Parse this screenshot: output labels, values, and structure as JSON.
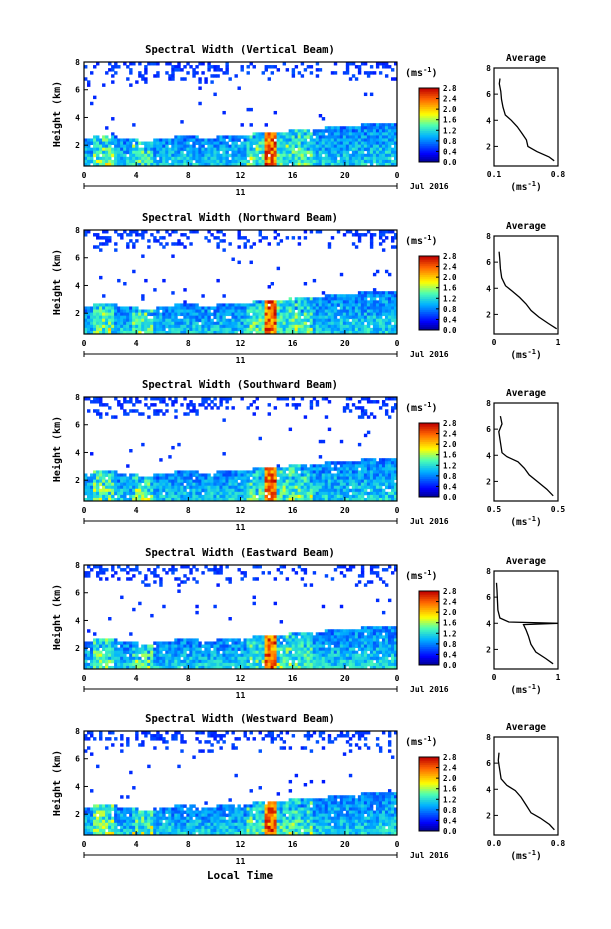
{
  "figure": {
    "xlabel": "Local Time",
    "date_label": "Jul 2016",
    "day_label": "11",
    "unit_label": "(ms",
    "unit_exp": "-1",
    "ylabel": "Height (km)",
    "avg_title": "Average"
  },
  "chart_data": [
    {
      "type": "heatmap",
      "title": "Spectral Width (Vertical Beam)",
      "x_ticks": [
        "0",
        "4",
        "8",
        "12",
        "16",
        "20",
        "0"
      ],
      "y_ticks": [
        "2",
        "4",
        "6",
        "8"
      ],
      "colorbar_ticks": [
        "0.0",
        "0.4",
        "0.8",
        "1.2",
        "1.6",
        "2.0",
        "2.4",
        "2.8"
      ],
      "xlim": [
        0,
        24
      ],
      "ylim": [
        0.5,
        8
      ],
      "profile": {
        "xlabel": "(ms-1)",
        "x_ticks": [
          "0.1",
          "0.8"
        ],
        "xlim": [
          0.05,
          0.9
        ],
        "y_ticks": [
          "2",
          "4",
          "6",
          "8"
        ],
        "ylim": [
          0.5,
          8
        ],
        "points": [
          [
            0.85,
            0.9
          ],
          [
            0.78,
            1.2
          ],
          [
            0.62,
            1.6
          ],
          [
            0.5,
            2.0
          ],
          [
            0.48,
            2.5
          ],
          [
            0.42,
            3.0
          ],
          [
            0.36,
            3.5
          ],
          [
            0.28,
            4.0
          ],
          [
            0.2,
            4.4
          ],
          [
            0.17,
            5.0
          ],
          [
            0.15,
            5.6
          ],
          [
            0.14,
            6.2
          ],
          [
            0.12,
            6.8
          ],
          [
            0.13,
            7.2
          ]
        ]
      }
    },
    {
      "type": "heatmap",
      "title": "Spectral Width (Northward Beam)",
      "x_ticks": [
        "0",
        "4",
        "8",
        "12",
        "16",
        "20",
        "0"
      ],
      "y_ticks": [
        "2",
        "4",
        "6",
        "8"
      ],
      "colorbar_ticks": [
        "0.0",
        "0.4",
        "0.8",
        "1.2",
        "1.6",
        "2.0",
        "2.4",
        "2.8"
      ],
      "xlim": [
        0,
        24
      ],
      "ylim": [
        0.5,
        8
      ],
      "profile": {
        "xlabel": "(ms-1)",
        "x_ticks": [
          "0",
          "1"
        ],
        "xlim": [
          0,
          1
        ],
        "y_ticks": [
          "2",
          "4",
          "6",
          "8"
        ],
        "ylim": [
          0.5,
          8
        ],
        "points": [
          [
            0.98,
            0.9
          ],
          [
            0.85,
            1.3
          ],
          [
            0.7,
            1.8
          ],
          [
            0.58,
            2.3
          ],
          [
            0.5,
            2.8
          ],
          [
            0.4,
            3.3
          ],
          [
            0.28,
            3.8
          ],
          [
            0.18,
            4.2
          ],
          [
            0.12,
            4.8
          ],
          [
            0.1,
            5.5
          ],
          [
            0.09,
            6.2
          ],
          [
            0.08,
            6.8
          ]
        ]
      }
    },
    {
      "type": "heatmap",
      "title": "Spectral Width (Southward Beam)",
      "x_ticks": [
        "0",
        "4",
        "8",
        "12",
        "16",
        "20",
        "0"
      ],
      "y_ticks": [
        "2",
        "4",
        "6",
        "8"
      ],
      "colorbar_ticks": [
        "0.0",
        "0.4",
        "0.8",
        "1.2",
        "1.6",
        "2.0",
        "2.4",
        "2.8"
      ],
      "xlim": [
        0,
        24
      ],
      "ylim": [
        0.5,
        8
      ],
      "profile": {
        "xlabel": "(ms-1)",
        "x_ticks": [
          "0.5",
          "0.5"
        ],
        "xlim": [
          0.25,
          0.65
        ],
        "y_ticks": [
          "2",
          "4",
          "6",
          "8"
        ],
        "ylim": [
          0.5,
          8
        ],
        "points": [
          [
            0.62,
            0.9
          ],
          [
            0.58,
            1.4
          ],
          [
            0.52,
            2.0
          ],
          [
            0.47,
            2.5
          ],
          [
            0.44,
            3.0
          ],
          [
            0.4,
            3.5
          ],
          [
            0.33,
            3.9
          ],
          [
            0.3,
            4.2
          ],
          [
            0.29,
            5.0
          ],
          [
            0.28,
            5.8
          ],
          [
            0.3,
            6.4
          ],
          [
            0.29,
            7.0
          ]
        ]
      }
    },
    {
      "type": "heatmap",
      "title": "Spectral Width (Eastward Beam)",
      "x_ticks": [
        "0",
        "4",
        "8",
        "12",
        "16",
        "20",
        "0"
      ],
      "y_ticks": [
        "2",
        "4",
        "6",
        "8"
      ],
      "colorbar_ticks": [
        "0.0",
        "0.4",
        "0.8",
        "1.2",
        "1.6",
        "2.0",
        "2.4",
        "2.8"
      ],
      "xlim": [
        0,
        24
      ],
      "ylim": [
        0.5,
        8
      ],
      "profile": {
        "xlabel": "(ms-1)",
        "x_ticks": [
          "0",
          "1"
        ],
        "xlim": [
          0,
          1.3
        ],
        "y_ticks": [
          "2",
          "4",
          "6",
          "8"
        ],
        "ylim": [
          0.5,
          8
        ],
        "points": [
          [
            1.2,
            0.9
          ],
          [
            1.05,
            1.3
          ],
          [
            0.85,
            1.8
          ],
          [
            0.75,
            2.4
          ],
          [
            0.7,
            3.0
          ],
          [
            0.65,
            3.5
          ],
          [
            0.6,
            3.9
          ],
          [
            1.3,
            4.0
          ],
          [
            0.3,
            4.1
          ],
          [
            0.12,
            4.4
          ],
          [
            0.08,
            5.0
          ],
          [
            0.07,
            5.8
          ],
          [
            0.06,
            6.5
          ],
          [
            0.05,
            7.1
          ]
        ]
      }
    },
    {
      "type": "heatmap",
      "title": "Spectral Width (Westward Beam)",
      "x_ticks": [
        "0",
        "4",
        "8",
        "12",
        "16",
        "20",
        "0"
      ],
      "y_ticks": [
        "2",
        "4",
        "6",
        "8"
      ],
      "colorbar_ticks": [
        "0.0",
        "0.4",
        "0.8",
        "1.2",
        "1.6",
        "2.0",
        "2.4",
        "2.8"
      ],
      "xlim": [
        0,
        24
      ],
      "ylim": [
        0.5,
        8
      ],
      "profile": {
        "xlabel": "(ms-1)",
        "x_ticks": [
          "0.0",
          "0.8"
        ],
        "xlim": [
          0,
          0.9
        ],
        "y_ticks": [
          "2",
          "4",
          "6",
          "8"
        ],
        "ylim": [
          0.5,
          8
        ],
        "points": [
          [
            0.85,
            0.9
          ],
          [
            0.78,
            1.3
          ],
          [
            0.65,
            1.8
          ],
          [
            0.52,
            2.2
          ],
          [
            0.45,
            2.8
          ],
          [
            0.38,
            3.4
          ],
          [
            0.3,
            3.9
          ],
          [
            0.18,
            4.3
          ],
          [
            0.1,
            4.8
          ],
          [
            0.08,
            5.5
          ],
          [
            0.06,
            6.2
          ],
          [
            0.07,
            6.8
          ]
        ]
      }
    }
  ]
}
